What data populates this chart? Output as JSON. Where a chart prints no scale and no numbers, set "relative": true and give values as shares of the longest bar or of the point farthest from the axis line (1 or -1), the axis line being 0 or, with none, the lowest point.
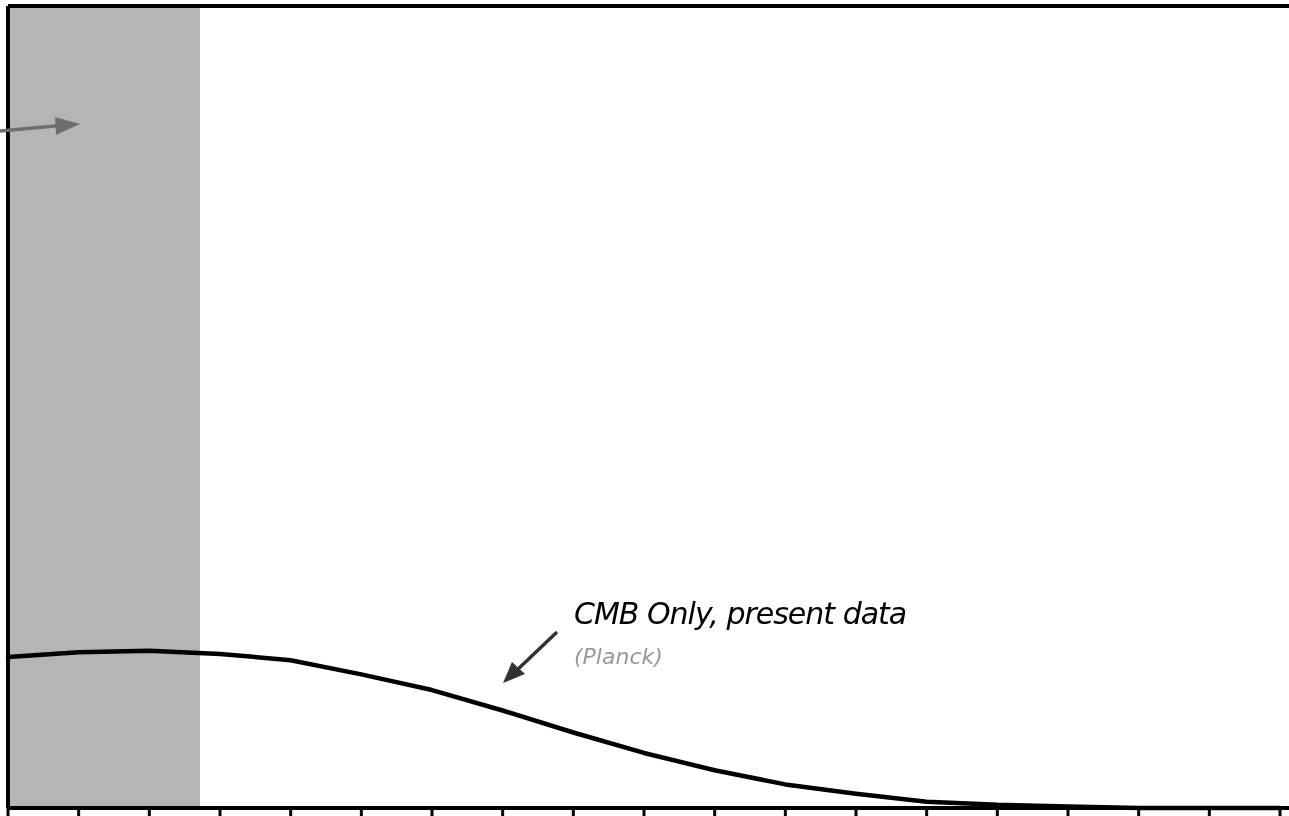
{
  "chart_data": {
    "type": "line",
    "relative": true,
    "categories": [
      null,
      null,
      null,
      null,
      null,
      null,
      null,
      null,
      null,
      null,
      null,
      null,
      null,
      null,
      null,
      null,
      null,
      null,
      null
    ],
    "series": [
      {
        "color": "#000000",
        "values": [
          0.96,
          0.99,
          1,
          0.98,
          0.94,
          0.85,
          0.75,
          0.62,
          0.48,
          0.35,
          0.24,
          0.15,
          0.09,
          0.04,
          0.02,
          0.01,
          0,
          0,
          0
        ]
      }
    ],
    "annotations": [
      "CMB Only, present data",
      "(Planck)"
    ]
  }
}
